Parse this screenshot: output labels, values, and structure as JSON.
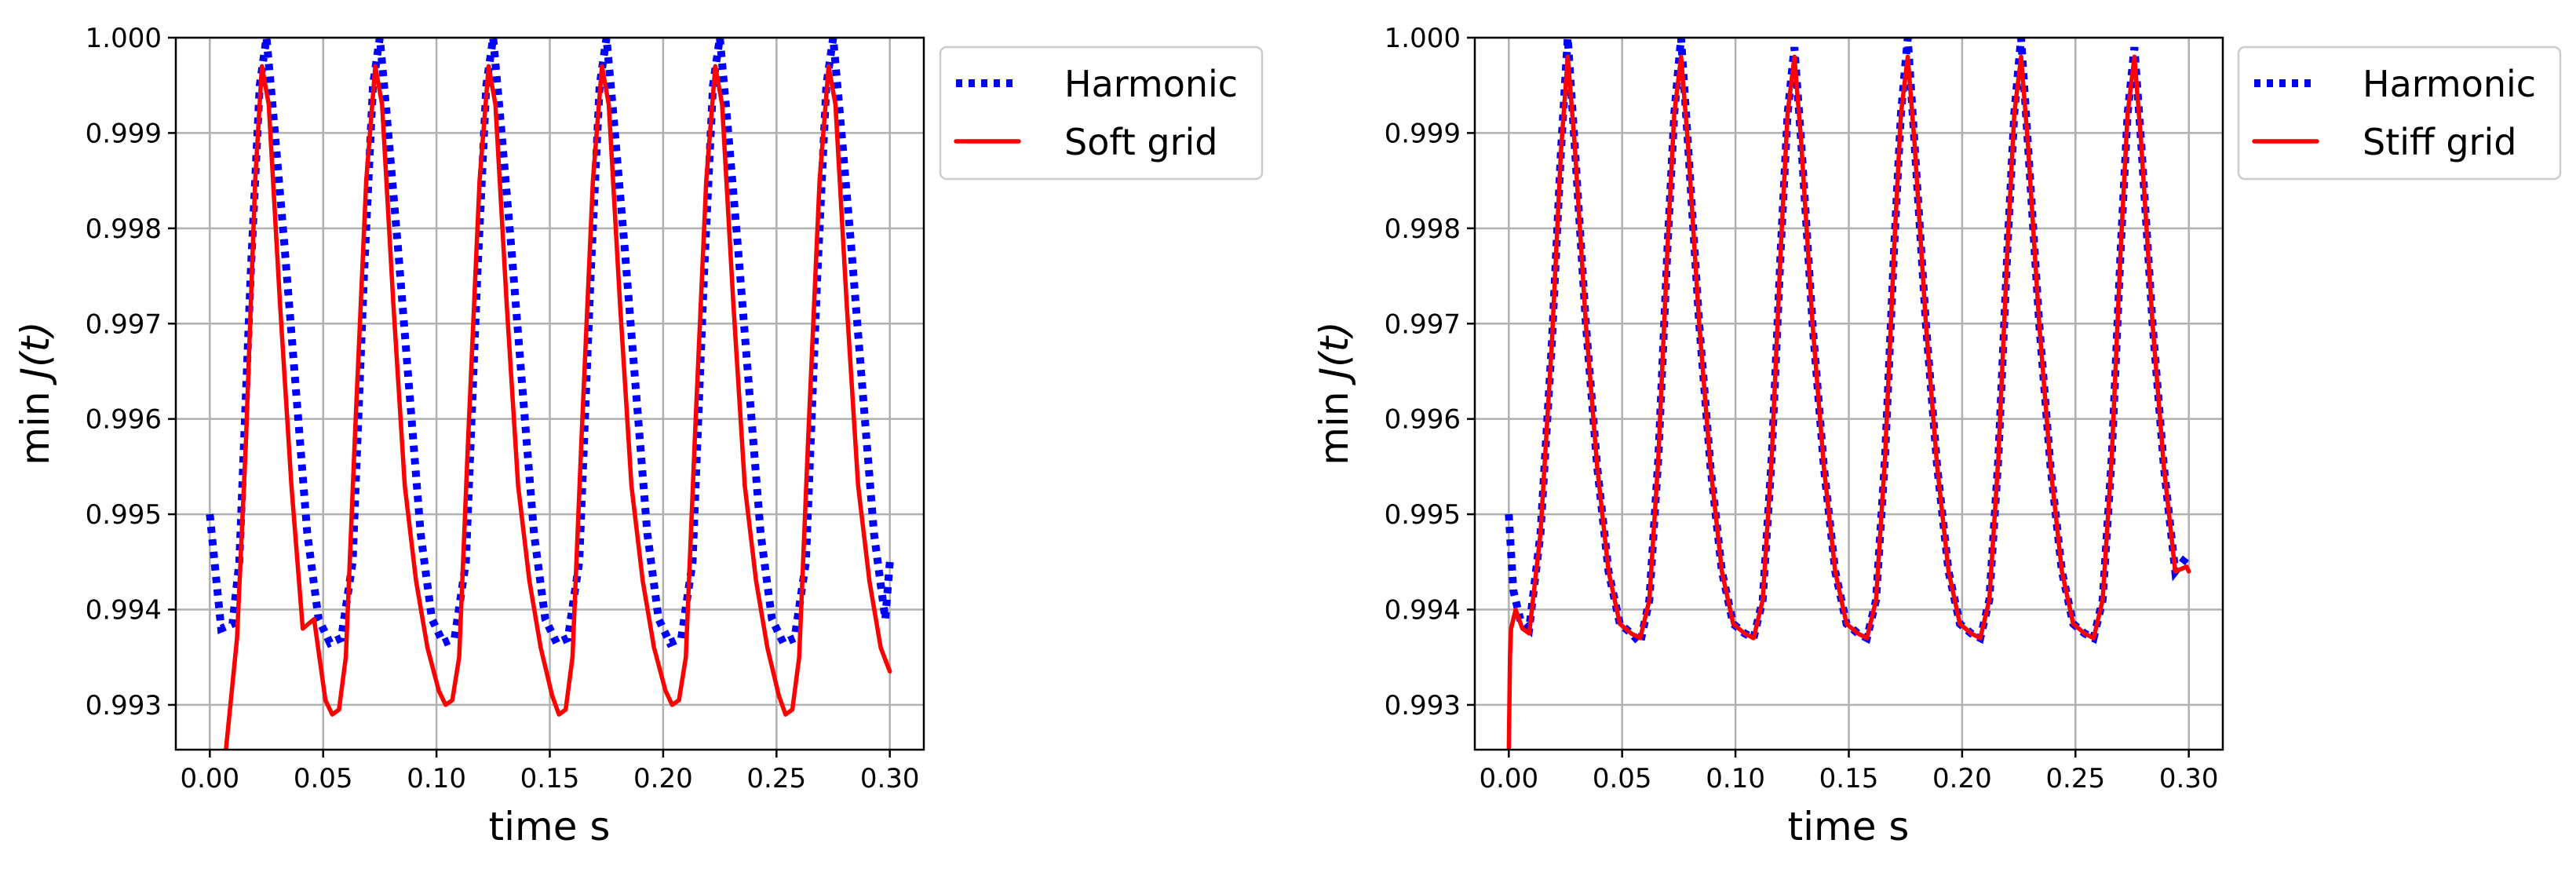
{
  "chart_data": [
    {
      "type": "line",
      "name": "soft",
      "xlabel": "time s",
      "ylabel_prefix": "min ",
      "ylabel_var": "J(t)",
      "xlim": [
        -0.015,
        0.315
      ],
      "ylim": [
        0.99253,
        1.0
      ],
      "xticks": [
        0.0,
        0.05,
        0.1,
        0.15,
        0.2,
        0.25,
        0.3
      ],
      "xtick_labels": [
        "0.00",
        "0.05",
        "0.10",
        "0.15",
        "0.20",
        "0.25",
        "0.30"
      ],
      "yticks": [
        0.993,
        0.994,
        0.995,
        0.996,
        0.997,
        0.998,
        0.999,
        1.0
      ],
      "ytick_labels": [
        "0.993",
        "0.994",
        "0.995",
        "0.996",
        "0.997",
        "0.998",
        "0.999",
        "1.000"
      ],
      "grid": true,
      "legend_position": "outside-upper-right",
      "series": [
        {
          "name": "Harmonic",
          "color": "#0000ff",
          "style": "dotted",
          "x": [
            0.0,
            0.005,
            0.01,
            0.013,
            0.018,
            0.022,
            0.025,
            0.028,
            0.033,
            0.038,
            0.043,
            0.048,
            0.053,
            0.058,
            0.063,
            0.068,
            0.072,
            0.075,
            0.078,
            0.083,
            0.088,
            0.093,
            0.098,
            0.103,
            0.108,
            0.113,
            0.118,
            0.122,
            0.125,
            0.128,
            0.133,
            0.138,
            0.143,
            0.148,
            0.153,
            0.158,
            0.163,
            0.168,
            0.172,
            0.175,
            0.178,
            0.183,
            0.188,
            0.193,
            0.198,
            0.203,
            0.208,
            0.213,
            0.218,
            0.222,
            0.225,
            0.228,
            0.233,
            0.238,
            0.243,
            0.248,
            0.253,
            0.258,
            0.263,
            0.268,
            0.272,
            0.275,
            0.278,
            0.283,
            0.288,
            0.293,
            0.298,
            0.3
          ],
          "y": [
            0.995,
            0.9938,
            0.99385,
            0.9945,
            0.9975,
            0.9995,
            1.0,
            0.9992,
            0.9978,
            0.9963,
            0.9948,
            0.9939,
            0.99365,
            0.9937,
            0.9945,
            0.9975,
            0.9995,
            1.0,
            0.9992,
            0.9978,
            0.9963,
            0.9948,
            0.9939,
            0.99365,
            0.9937,
            0.9945,
            0.9975,
            0.9995,
            1.0,
            0.9992,
            0.9978,
            0.9963,
            0.9948,
            0.9939,
            0.99365,
            0.9937,
            0.9945,
            0.9975,
            0.9995,
            1.0,
            0.9992,
            0.9978,
            0.9963,
            0.9948,
            0.9939,
            0.99365,
            0.9937,
            0.9945,
            0.9975,
            0.9995,
            1.0,
            0.9992,
            0.9978,
            0.9963,
            0.9948,
            0.9939,
            0.99365,
            0.9937,
            0.9945,
            0.9975,
            0.9995,
            1.0,
            0.9992,
            0.9978,
            0.9963,
            0.9948,
            0.9939,
            0.9945
          ]
        },
        {
          "name": "Soft grid",
          "color": "#ff0000",
          "style": "solid",
          "x": [
            0.007,
            0.012,
            0.016,
            0.02,
            0.023,
            0.026,
            0.031,
            0.036,
            0.041,
            0.046,
            0.051,
            0.054,
            0.057,
            0.06,
            0.064,
            0.069,
            0.073,
            0.076,
            0.081,
            0.086,
            0.091,
            0.096,
            0.101,
            0.104,
            0.107,
            0.11,
            0.114,
            0.119,
            0.123,
            0.126,
            0.131,
            0.136,
            0.141,
            0.146,
            0.151,
            0.154,
            0.157,
            0.16,
            0.164,
            0.169,
            0.173,
            0.176,
            0.181,
            0.186,
            0.191,
            0.196,
            0.201,
            0.204,
            0.207,
            0.21,
            0.214,
            0.219,
            0.223,
            0.226,
            0.231,
            0.236,
            0.241,
            0.246,
            0.251,
            0.254,
            0.257,
            0.26,
            0.264,
            0.269,
            0.273,
            0.276,
            0.281,
            0.286,
            0.291,
            0.296,
            0.3
          ],
          "y": [
            0.9925,
            0.9937,
            0.9958,
            0.9985,
            0.9997,
            0.9993,
            0.9972,
            0.9953,
            0.9938,
            0.9939,
            0.99305,
            0.9929,
            0.99295,
            0.9935,
            0.9958,
            0.9985,
            0.9997,
            0.9993,
            0.9972,
            0.9953,
            0.9943,
            0.9936,
            0.99315,
            0.993,
            0.99305,
            0.9935,
            0.9958,
            0.9985,
            0.9997,
            0.9993,
            0.9972,
            0.9953,
            0.9943,
            0.9936,
            0.9931,
            0.9929,
            0.99295,
            0.9935,
            0.9958,
            0.9985,
            0.9997,
            0.9993,
            0.9972,
            0.9953,
            0.9943,
            0.9936,
            0.99315,
            0.993,
            0.99305,
            0.9935,
            0.9958,
            0.9985,
            0.9997,
            0.9993,
            0.9972,
            0.9953,
            0.9943,
            0.9936,
            0.9931,
            0.9929,
            0.99295,
            0.9935,
            0.9958,
            0.9985,
            0.9997,
            0.9993,
            0.9972,
            0.9953,
            0.9943,
            0.9936,
            0.99335
          ]
        }
      ]
    },
    {
      "type": "line",
      "name": "stiff",
      "xlabel": "time s",
      "ylabel_prefix": "min ",
      "ylabel_var": "J(t)",
      "xlim": [
        -0.015,
        0.315
      ],
      "ylim": [
        0.99253,
        1.0
      ],
      "xticks": [
        0.0,
        0.05,
        0.1,
        0.15,
        0.2,
        0.25,
        0.3
      ],
      "xtick_labels": [
        "0.00",
        "0.05",
        "0.10",
        "0.15",
        "0.20",
        "0.25",
        "0.30"
      ],
      "yticks": [
        0.993,
        0.994,
        0.995,
        0.996,
        0.997,
        0.998,
        0.999,
        1.0
      ],
      "ytick_labels": [
        "0.993",
        "0.994",
        "0.995",
        "0.996",
        "0.997",
        "0.998",
        "0.999",
        "1.000"
      ],
      "grid": true,
      "legend_position": "outside-upper-right",
      "series": [
        {
          "name": "Harmonic",
          "color": "#0000ff",
          "style": "dotted",
          "x": [
            0.0,
            0.002,
            0.005,
            0.009,
            0.014,
            0.019,
            0.023,
            0.026,
            0.029,
            0.034,
            0.039,
            0.044,
            0.049,
            0.054,
            0.058,
            0.062,
            0.066,
            0.07,
            0.073,
            0.076,
            0.079,
            0.084,
            0.089,
            0.094,
            0.099,
            0.104,
            0.108,
            0.112,
            0.116,
            0.12,
            0.123,
            0.126,
            0.129,
            0.134,
            0.139,
            0.144,
            0.149,
            0.154,
            0.158,
            0.162,
            0.166,
            0.17,
            0.173,
            0.176,
            0.179,
            0.184,
            0.189,
            0.194,
            0.199,
            0.204,
            0.208,
            0.212,
            0.216,
            0.22,
            0.223,
            0.226,
            0.229,
            0.234,
            0.239,
            0.244,
            0.249,
            0.254,
            0.258,
            0.262,
            0.266,
            0.27,
            0.273,
            0.276,
            0.279,
            0.284,
            0.289,
            0.294,
            0.299,
            0.3
          ],
          "y": [
            0.995,
            0.9942,
            0.9939,
            0.9938,
            0.9948,
            0.9968,
            0.9988,
            1.0,
            0.9989,
            0.997,
            0.9955,
            0.9944,
            0.99385,
            0.99375,
            0.99365,
            0.9941,
            0.9956,
            0.9978,
            0.9992,
            1.0,
            0.9989,
            0.997,
            0.9955,
            0.9944,
            0.99385,
            0.99375,
            0.9937,
            0.9941,
            0.9956,
            0.9978,
            0.9992,
            0.9999,
            0.9989,
            0.997,
            0.9955,
            0.9944,
            0.99385,
            0.99375,
            0.9937,
            0.9941,
            0.9956,
            0.9978,
            0.9992,
            1.0,
            0.9989,
            0.997,
            0.9955,
            0.9944,
            0.99385,
            0.99375,
            0.9937,
            0.9941,
            0.9956,
            0.9978,
            0.9992,
            1.0,
            0.9989,
            0.997,
            0.9955,
            0.9944,
            0.99385,
            0.99375,
            0.9937,
            0.9941,
            0.9956,
            0.9978,
            0.9992,
            0.9999,
            0.9989,
            0.997,
            0.9955,
            0.9944,
            0.99455,
            0.9945
          ]
        },
        {
          "name": "Stiff grid",
          "color": "#ff0000",
          "style": "solid",
          "x": [
            0.0,
            0.0005,
            0.001,
            0.003,
            0.006,
            0.009,
            0.014,
            0.019,
            0.023,
            0.026,
            0.029,
            0.034,
            0.039,
            0.044,
            0.049,
            0.054,
            0.058,
            0.062,
            0.066,
            0.07,
            0.073,
            0.076,
            0.079,
            0.084,
            0.089,
            0.094,
            0.099,
            0.104,
            0.108,
            0.112,
            0.116,
            0.12,
            0.123,
            0.126,
            0.129,
            0.134,
            0.139,
            0.144,
            0.149,
            0.154,
            0.158,
            0.162,
            0.166,
            0.17,
            0.173,
            0.176,
            0.179,
            0.184,
            0.189,
            0.194,
            0.199,
            0.204,
            0.208,
            0.212,
            0.216,
            0.22,
            0.223,
            0.226,
            0.229,
            0.234,
            0.239,
            0.244,
            0.249,
            0.254,
            0.258,
            0.262,
            0.266,
            0.27,
            0.273,
            0.276,
            0.279,
            0.284,
            0.289,
            0.294,
            0.299,
            0.3
          ],
          "y": [
            0.9925,
            0.9935,
            0.9938,
            0.994,
            0.9938,
            0.99375,
            0.9948,
            0.9968,
            0.9988,
            0.9998,
            0.9989,
            0.997,
            0.9955,
            0.9944,
            0.99385,
            0.99375,
            0.9937,
            0.9941,
            0.9956,
            0.9978,
            0.9992,
            0.9998,
            0.9989,
            0.997,
            0.9955,
            0.9944,
            0.99385,
            0.99375,
            0.9937,
            0.9941,
            0.9956,
            0.9978,
            0.9992,
            0.9998,
            0.9989,
            0.997,
            0.9955,
            0.9944,
            0.99385,
            0.99375,
            0.9937,
            0.9941,
            0.9956,
            0.9978,
            0.9992,
            0.9998,
            0.9989,
            0.997,
            0.9955,
            0.9944,
            0.99385,
            0.99375,
            0.9937,
            0.9941,
            0.9956,
            0.9978,
            0.9992,
            0.9998,
            0.9989,
            0.997,
            0.9955,
            0.9944,
            0.99385,
            0.99375,
            0.9937,
            0.9941,
            0.9956,
            0.9978,
            0.9992,
            0.9998,
            0.9989,
            0.997,
            0.9955,
            0.9944,
            0.99445,
            0.9944
          ]
        }
      ]
    }
  ]
}
